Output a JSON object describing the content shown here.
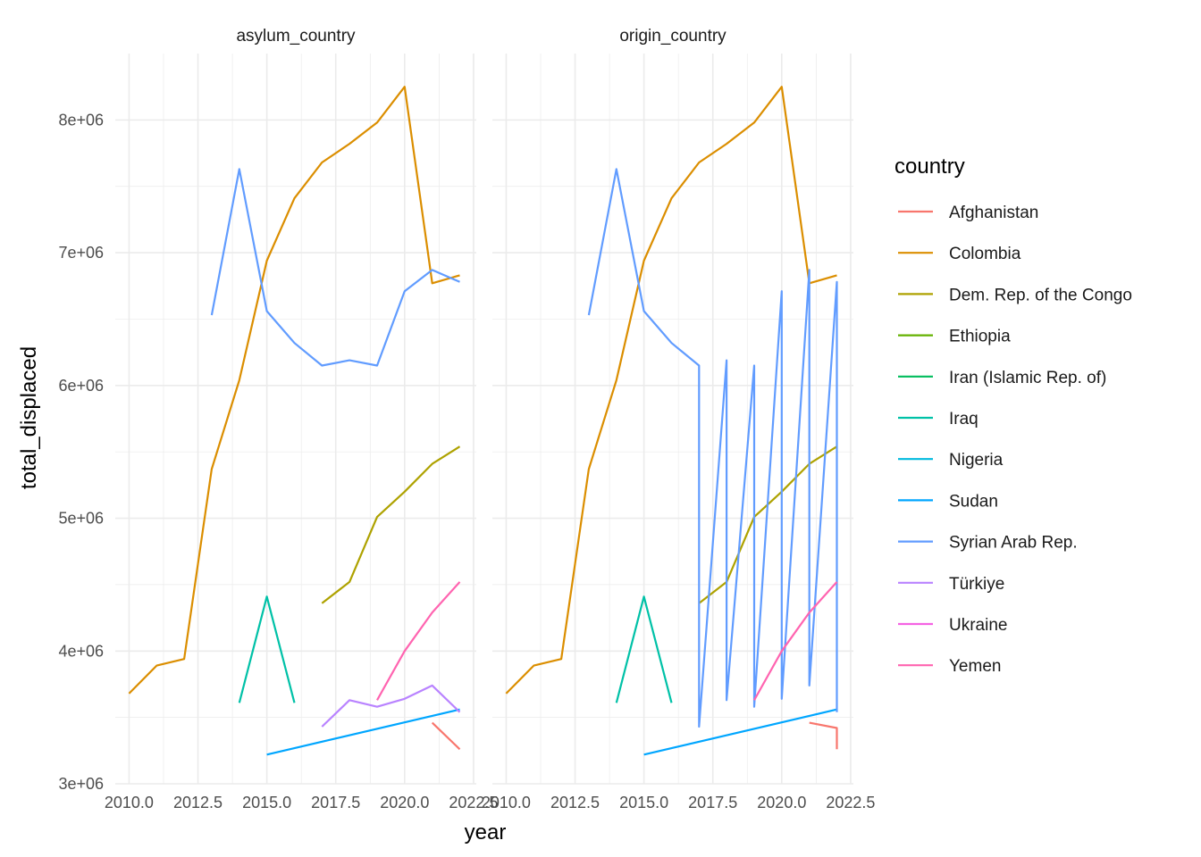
{
  "chart_data": {
    "type": "line",
    "facets": [
      "asylum_country",
      "origin_country"
    ],
    "xlabel": "year",
    "ylabel": "total_displaced",
    "xlim": [
      2009.5,
      2022.6
    ],
    "ylim": [
      3000000,
      8500000
    ],
    "x_ticks": [
      2010.0,
      2012.5,
      2015.0,
      2017.5,
      2020.0,
      2022.5
    ],
    "x_tick_labels": [
      "2010.0",
      "2012.5",
      "2015.0",
      "2017.5",
      "2020.0",
      "2022.5"
    ],
    "y_ticks": [
      3000000,
      4000000,
      5000000,
      6000000,
      7000000,
      8000000
    ],
    "y_tick_labels": [
      "3e+06",
      "4e+06",
      "5e+06",
      "6e+06",
      "7e+06",
      "8e+06"
    ],
    "legend_title": "country",
    "legend_position": "right",
    "grid": true,
    "series": [
      {
        "name": "Afghanistan",
        "color": "#F8766D",
        "asylum_country": {
          "x": [
            2021,
            2022
          ],
          "y": [
            3460000,
            3260000
          ]
        },
        "origin_country": {
          "x": [
            2021,
            2022,
            2022
          ],
          "y": [
            3460000,
            3420000,
            3260000
          ]
        }
      },
      {
        "name": "Colombia",
        "color": "#DB8E00",
        "asylum_country": {
          "x": [
            2010,
            2011,
            2012,
            2013,
            2014,
            2015,
            2016,
            2017,
            2018,
            2019,
            2020,
            2021,
            2022
          ],
          "y": [
            3680000,
            3890000,
            3940000,
            5370000,
            6040000,
            6940000,
            7410000,
            7680000,
            7820000,
            7980000,
            8250000,
            6770000,
            6830000
          ]
        },
        "origin_country": {
          "x": [
            2010,
            2011,
            2012,
            2013,
            2014,
            2015,
            2016,
            2017,
            2018,
            2019,
            2020,
            2021,
            2022
          ],
          "y": [
            3680000,
            3890000,
            3940000,
            5370000,
            6040000,
            6940000,
            7410000,
            7680000,
            7820000,
            7980000,
            8250000,
            6770000,
            6830000
          ]
        }
      },
      {
        "name": "Dem. Rep. of the Congo",
        "color": "#AEA200",
        "asylum_country": {
          "x": [
            2017,
            2018,
            2019,
            2020,
            2021,
            2022
          ],
          "y": [
            4360000,
            4520000,
            5010000,
            5200000,
            5410000,
            5540000
          ]
        },
        "origin_country": {
          "x": [
            2017,
            2018,
            2019,
            2020,
            2021,
            2022
          ],
          "y": [
            4360000,
            4520000,
            5010000,
            5200000,
            5410000,
            5540000
          ]
        }
      },
      {
        "name": "Ethiopia",
        "color": "#64B200",
        "asylum_country": {
          "x": [],
          "y": []
        },
        "origin_country": {
          "x": [],
          "y": []
        }
      },
      {
        "name": "Iran (Islamic Rep. of)",
        "color": "#00BD5C",
        "asylum_country": {
          "x": [],
          "y": []
        },
        "origin_country": {
          "x": [],
          "y": []
        }
      },
      {
        "name": "Iraq",
        "color": "#00C1A7",
        "asylum_country": {
          "x": [
            2014,
            2015,
            2016
          ],
          "y": [
            3610000,
            4410000,
            3610000
          ]
        },
        "origin_country": {
          "x": [
            2014,
            2015,
            2016
          ],
          "y": [
            3610000,
            4410000,
            3610000
          ]
        }
      },
      {
        "name": "Nigeria",
        "color": "#00BADE",
        "asylum_country": {
          "x": [],
          "y": []
        },
        "origin_country": {
          "x": [],
          "y": []
        }
      },
      {
        "name": "Sudan",
        "color": "#00A6FF",
        "asylum_country": {
          "x": [
            2015,
            2022
          ],
          "y": [
            3220000,
            3560000
          ]
        },
        "origin_country": {
          "x": [
            2015,
            2022
          ],
          "y": [
            3220000,
            3560000
          ]
        }
      },
      {
        "name": "Syrian Arab Rep.",
        "color": "#619CFF",
        "asylum_country": {
          "x": [
            2013,
            2014,
            2015,
            2016,
            2017,
            2018,
            2019,
            2020,
            2021,
            2022
          ],
          "y": [
            6530000,
            7630000,
            6560000,
            6320000,
            6150000,
            6190000,
            6150000,
            6710000,
            6870000,
            6780000
          ]
        },
        "origin_country": {
          "x": [
            2013,
            2014,
            2015,
            2016,
            2017,
            2017,
            2018,
            2018,
            2019,
            2019,
            2020,
            2020,
            2021,
            2021,
            2022,
            2022
          ],
          "y": [
            6530000,
            7630000,
            6560000,
            6320000,
            6150000,
            3430000,
            6190000,
            3630000,
            6150000,
            3580000,
            6710000,
            3640000,
            6870000,
            3740000,
            6780000,
            3540000
          ]
        }
      },
      {
        "name": "Türkiye",
        "color": "#B983FF",
        "asylum_country": {
          "x": [
            2017,
            2018,
            2019,
            2020,
            2021,
            2022
          ],
          "y": [
            3430000,
            3630000,
            3580000,
            3640000,
            3740000,
            3540000
          ]
        },
        "origin_country": {
          "x": [],
          "y": []
        }
      },
      {
        "name": "Ukraine",
        "color": "#F564E3",
        "asylum_country": {
          "x": [],
          "y": []
        },
        "origin_country": {
          "x": [],
          "y": []
        }
      },
      {
        "name": "Yemen",
        "color": "#FF64B0",
        "asylum_country": {
          "x": [
            2019,
            2020,
            2021,
            2022
          ],
          "y": [
            3630000,
            4000000,
            4290000,
            4520000
          ]
        },
        "origin_country": {
          "x": [
            2019,
            2020,
            2021,
            2022
          ],
          "y": [
            3630000,
            4000000,
            4290000,
            4520000
          ]
        }
      }
    ]
  }
}
